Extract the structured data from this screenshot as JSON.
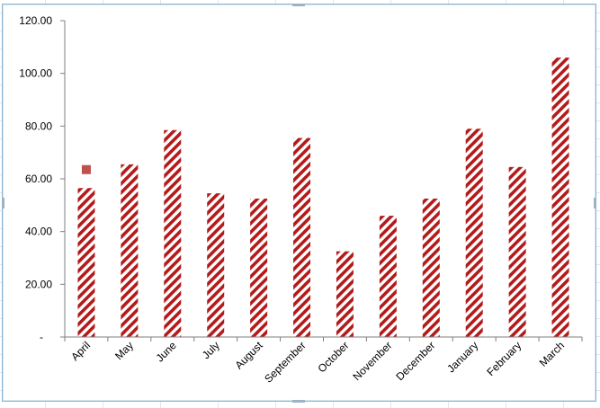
{
  "chart_data": {
    "type": "bar",
    "categories": [
      "April",
      "May",
      "June",
      "July",
      "August",
      "September",
      "October",
      "November",
      "December",
      "January",
      "February",
      "March"
    ],
    "values": [
      56.5,
      65.5,
      78.5,
      54.5,
      52.5,
      75.5,
      32.5,
      46.0,
      52.5,
      79.0,
      64.5,
      106.0
    ],
    "marker": {
      "category": "April",
      "value": 63.5
    },
    "ylim": [
      0,
      120
    ],
    "yticks": [
      "-",
      "20.00",
      "40.00",
      "60.00",
      "80.00",
      "100.00",
      "120.00"
    ],
    "grid": false,
    "colors": {
      "bar": "#b31b1b",
      "marker": "#c0504d",
      "axis": "#7f7f7f"
    }
  }
}
